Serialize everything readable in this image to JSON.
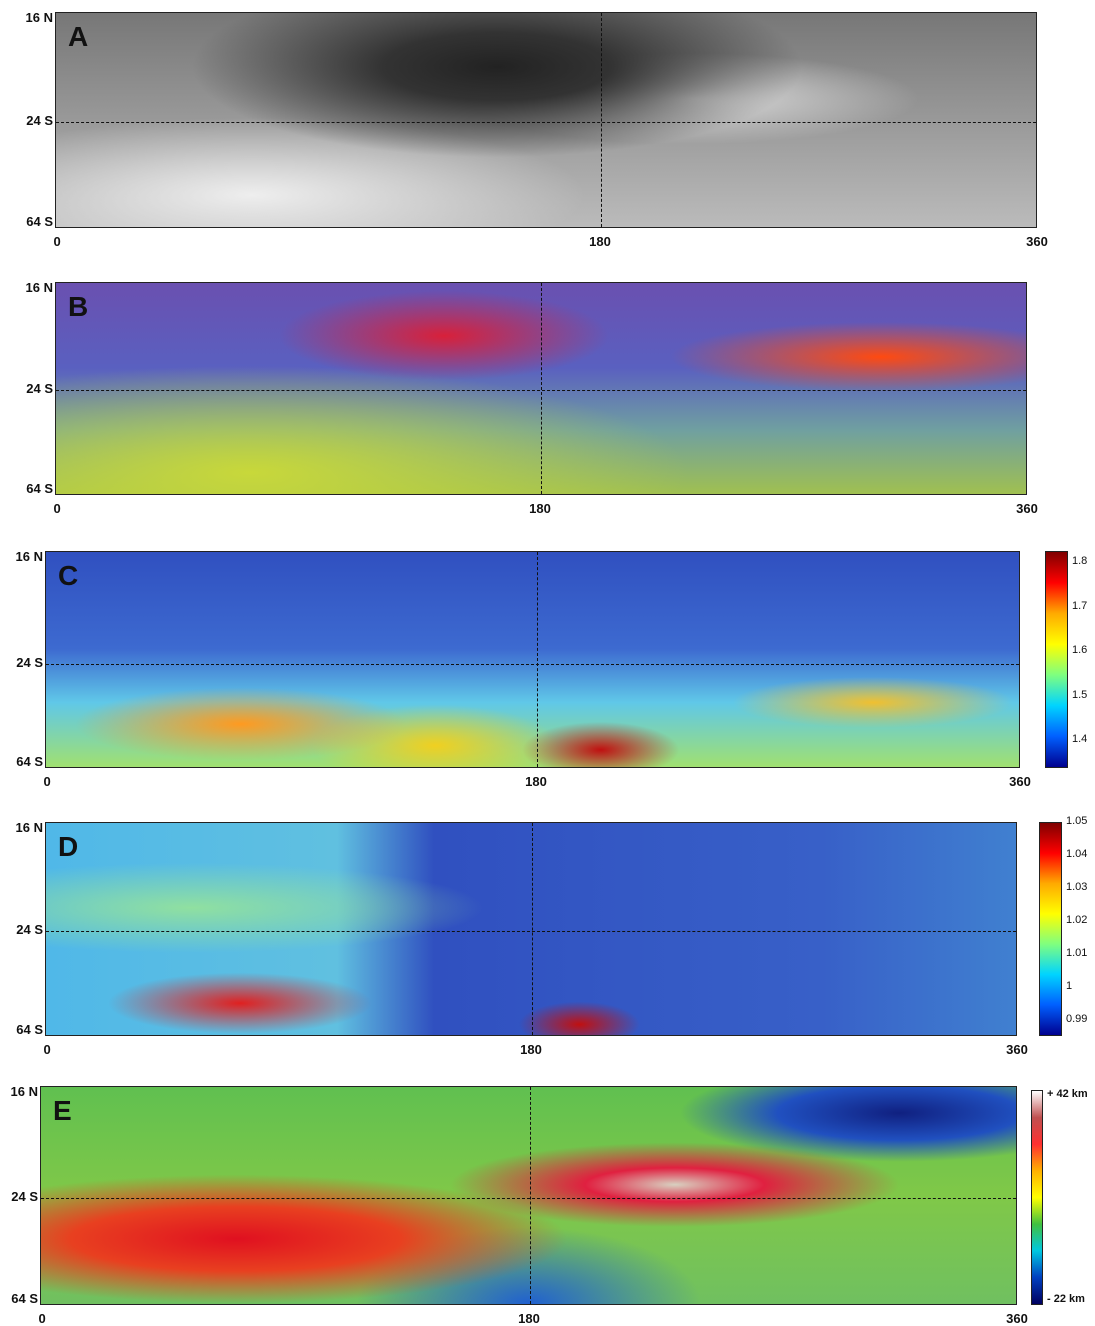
{
  "panels": [
    {
      "label": "A",
      "y_labels": [
        "16 N",
        "24 S",
        "64 S"
      ],
      "x_labels": [
        "0",
        "180",
        "360"
      ]
    },
    {
      "label": "B",
      "y_labels": [
        "16 N",
        "24 S",
        "64 S"
      ],
      "x_labels": [
        "0",
        "180",
        "360"
      ]
    },
    {
      "label": "C",
      "y_labels": [
        "16 N",
        "24 S",
        "64 S"
      ],
      "x_labels": [
        "0",
        "180",
        "360"
      ],
      "colorbar_ticks": [
        "1.8",
        "1.7",
        "1.6",
        "1.5",
        "1.4"
      ]
    },
    {
      "label": "D",
      "y_labels": [
        "16 N",
        "24 S",
        "64 S"
      ],
      "x_labels": [
        "0",
        "180",
        "360"
      ],
      "colorbar_ticks": [
        "1.05",
        "1.04",
        "1.03",
        "1.02",
        "1.01",
        "1",
        "0.99"
      ]
    },
    {
      "label": "E",
      "y_labels": [
        "16 N",
        "24 S",
        "64 S"
      ],
      "x_labels": [
        "0",
        "180",
        "360"
      ],
      "colorbar_ticks": [
        "+ 42 km",
        "- 22 km"
      ]
    }
  ]
}
